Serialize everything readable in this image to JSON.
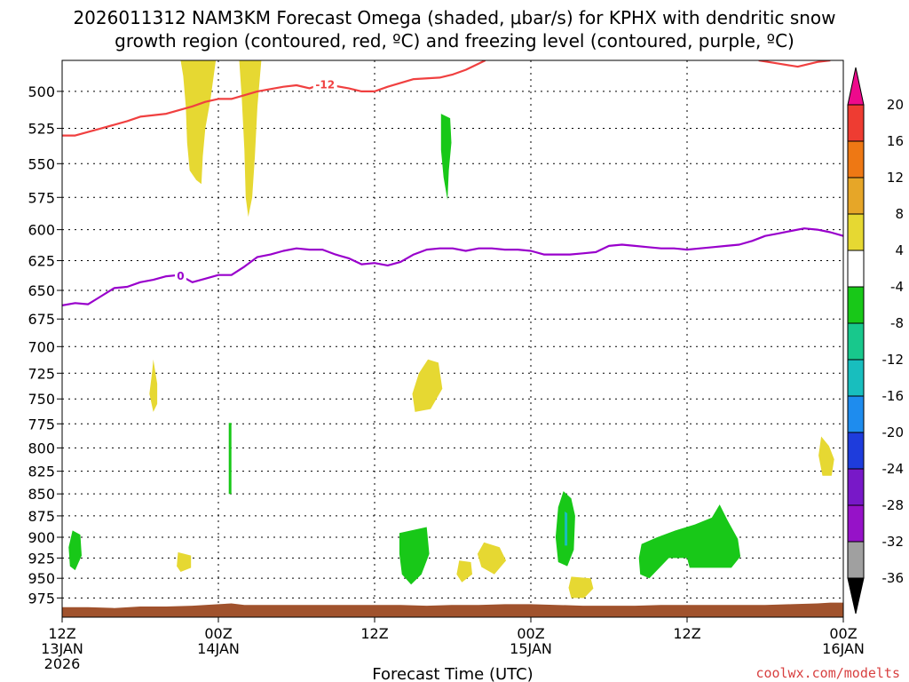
{
  "title_line1": "2026011312 NAM3KM Forecast Omega (shaded, μbar/s) for KPHX with dendritic snow",
  "title_line2": "growth region (contoured, red, ºC) and freezing level (contoured, purple, ºC)",
  "credit": "coolwx.com/modelts",
  "chart_data": {
    "type": "heatmap",
    "xlabel": "Forecast Time (UTC)",
    "x_unit": "forecast hour (0 = 2026-01-13 12Z)",
    "xlim": [
      0,
      60
    ],
    "ylim": [
      1000,
      480
    ],
    "x_ticks": [
      {
        "hour": 0,
        "line1": "12Z",
        "line2": "13JAN",
        "line3": "2026"
      },
      {
        "hour": 12,
        "line1": "00Z",
        "line2": "14JAN",
        "line3": ""
      },
      {
        "hour": 24,
        "line1": "12Z",
        "line2": "",
        "line3": ""
      },
      {
        "hour": 36,
        "line1": "00Z",
        "line2": "15JAN",
        "line3": ""
      },
      {
        "hour": 48,
        "line1": "12Z",
        "line2": "",
        "line3": ""
      },
      {
        "hour": 60,
        "line1": "00Z",
        "line2": "16JAN",
        "line3": ""
      }
    ],
    "y_ticks": [
      500,
      525,
      550,
      575,
      600,
      625,
      650,
      675,
      700,
      725,
      750,
      775,
      800,
      825,
      850,
      875,
      900,
      925,
      950,
      975
    ],
    "colorbar": {
      "labels": [
        "20",
        "16",
        "12",
        "8",
        "4",
        "-4",
        "-8",
        "-12",
        "-16",
        "-20",
        "-24",
        "-28",
        "-32",
        "-36"
      ],
      "colors": {
        "ge20": "#ee0a8c",
        "16_20": "#ee3c32",
        "12_16": "#ee7814",
        "8_12": "#e6a628",
        "4_8": "#e6d832",
        "neutral": "#ffffff",
        "m8_m4": "#18c818",
        "m12_m8": "#18c88c",
        "m16_m12": "#18bebe",
        "m20_m16": "#1e8cee",
        "m24_m20": "#1e3cdc",
        "m28_m24": "#7818c8",
        "m32_m28": "#9612c8",
        "m36_m32": "#a0a0a0",
        "le_m36": "#000000"
      }
    },
    "omega_regions": [
      {
        "sign": "positive",
        "range": "4 to 8",
        "pts": [
          [
            9.1,
            480
          ],
          [
            11.8,
            480
          ],
          [
            11.4,
            505
          ],
          [
            11.0,
            525
          ],
          [
            10.8,
            545
          ],
          [
            10.7,
            565
          ],
          [
            10.3,
            562
          ],
          [
            9.8,
            555
          ],
          [
            9.6,
            535
          ],
          [
            9.5,
            510
          ],
          [
            9.3,
            490
          ]
        ]
      },
      {
        "sign": "positive",
        "range": "4 to 8",
        "pts": [
          [
            13.6,
            480
          ],
          [
            15.3,
            480
          ],
          [
            15.0,
            510
          ],
          [
            14.8,
            545
          ],
          [
            14.6,
            575
          ],
          [
            14.3,
            590
          ],
          [
            14.1,
            575
          ],
          [
            14.0,
            540
          ],
          [
            13.8,
            505
          ]
        ]
      },
      {
        "sign": "negative",
        "range": "-8 to -4",
        "pts": [
          [
            29.1,
            515
          ],
          [
            29.8,
            518
          ],
          [
            29.9,
            535
          ],
          [
            29.7,
            555
          ],
          [
            29.6,
            577
          ],
          [
            29.3,
            560
          ],
          [
            29.1,
            540
          ]
        ]
      },
      {
        "sign": "positive",
        "range": "4 to 8",
        "pts": [
          [
            7.0,
            712
          ],
          [
            7.3,
            735
          ],
          [
            7.3,
            755
          ],
          [
            7.0,
            763
          ],
          [
            6.7,
            745
          ],
          [
            6.9,
            725
          ]
        ]
      },
      {
        "sign": "positive",
        "range": "4 to 8",
        "pts": [
          [
            28.1,
            712
          ],
          [
            28.9,
            715
          ],
          [
            29.2,
            740
          ],
          [
            28.3,
            760
          ],
          [
            27.1,
            763
          ],
          [
            26.9,
            745
          ],
          [
            27.4,
            725
          ]
        ]
      },
      {
        "sign": "negative",
        "range": "-8 to -4",
        "pts": [
          [
            12.8,
            774
          ],
          [
            13.0,
            774
          ],
          [
            13.0,
            850
          ],
          [
            12.8,
            850
          ]
        ]
      },
      {
        "sign": "positive",
        "range": "4 to 8",
        "pts": [
          [
            58.3,
            788
          ],
          [
            58.9,
            798
          ],
          [
            59.3,
            812
          ],
          [
            59.1,
            830
          ],
          [
            58.4,
            830
          ],
          [
            58.1,
            808
          ]
        ]
      },
      {
        "sign": "negative",
        "range": "-8 to -4",
        "pts": [
          [
            0.8,
            892
          ],
          [
            1.4,
            897
          ],
          [
            1.5,
            922
          ],
          [
            1.0,
            940
          ],
          [
            0.6,
            935
          ],
          [
            0.5,
            912
          ]
        ]
      },
      {
        "sign": "positive",
        "range": "4 to 8",
        "pts": [
          [
            8.9,
            918
          ],
          [
            9.9,
            922
          ],
          [
            9.9,
            937
          ],
          [
            9.1,
            942
          ],
          [
            8.8,
            935
          ]
        ]
      },
      {
        "sign": "negative",
        "range": "-8 to -4",
        "pts": [
          [
            25.9,
            895
          ],
          [
            28.0,
            888
          ],
          [
            28.2,
            920
          ],
          [
            27.6,
            945
          ],
          [
            26.8,
            958
          ],
          [
            26.1,
            945
          ],
          [
            25.9,
            920
          ]
        ]
      },
      {
        "sign": "positive",
        "range": "4 to 8",
        "pts": [
          [
            32.4,
            906
          ],
          [
            33.6,
            912
          ],
          [
            34.1,
            928
          ],
          [
            33.2,
            945
          ],
          [
            32.2,
            936
          ],
          [
            31.9,
            920
          ]
        ]
      },
      {
        "sign": "positive",
        "range": "4 to 8",
        "pts": [
          [
            30.5,
            928
          ],
          [
            31.4,
            930
          ],
          [
            31.5,
            945
          ],
          [
            30.7,
            955
          ],
          [
            30.3,
            945
          ]
        ]
      },
      {
        "sign": "negative",
        "range": "-8 to -4",
        "pts": [
          [
            38.5,
            847
          ],
          [
            39.1,
            855
          ],
          [
            39.4,
            875
          ],
          [
            39.3,
            915
          ],
          [
            38.8,
            935
          ],
          [
            38.1,
            930
          ],
          [
            37.9,
            900
          ],
          [
            38.1,
            865
          ]
        ]
      },
      {
        "sign": "negative",
        "range": "-16 to -12",
        "pts": [
          [
            38.6,
            870
          ],
          [
            38.8,
            872
          ],
          [
            38.8,
            910
          ],
          [
            38.6,
            910
          ]
        ]
      },
      {
        "sign": "positive",
        "range": "4 to 8",
        "pts": [
          [
            39.1,
            948
          ],
          [
            40.6,
            950
          ],
          [
            40.8,
            963
          ],
          [
            40.1,
            975
          ],
          [
            39.1,
            975
          ],
          [
            38.9,
            962
          ]
        ]
      },
      {
        "sign": "negative",
        "range": "-8 to -4",
        "pts": [
          [
            44.5,
            908
          ],
          [
            45.7,
            900
          ],
          [
            47.1,
            892
          ],
          [
            48.6,
            885
          ],
          [
            49.9,
            877
          ],
          [
            50.5,
            862
          ],
          [
            51.1,
            880
          ],
          [
            51.9,
            902
          ],
          [
            52.1,
            923
          ],
          [
            51.4,
            937
          ],
          [
            48.2,
            937
          ],
          [
            48.0,
            925
          ],
          [
            46.6,
            925
          ],
          [
            45.1,
            950
          ],
          [
            44.4,
            945
          ],
          [
            44.3,
            925
          ]
        ]
      }
    ],
    "contours": [
      {
        "label": "-12",
        "color": "#f04040",
        "label_at_hour": 20.2,
        "pts": [
          [
            0,
            530
          ],
          [
            1,
            530
          ],
          [
            3,
            525
          ],
          [
            5,
            520
          ],
          [
            6,
            517
          ],
          [
            8,
            515
          ],
          [
            10,
            510
          ],
          [
            11,
            507
          ],
          [
            12,
            505
          ],
          [
            13,
            505
          ],
          [
            15,
            500
          ],
          [
            17,
            497
          ],
          [
            18,
            496
          ],
          [
            19,
            498
          ],
          [
            20,
            495
          ],
          [
            22,
            498
          ],
          [
            23,
            500
          ],
          [
            24,
            500
          ],
          [
            25,
            497
          ],
          [
            27,
            492
          ],
          [
            29,
            491
          ],
          [
            30,
            489
          ],
          [
            31,
            486
          ],
          [
            32,
            482
          ],
          [
            32.5,
            480
          ]
        ]
      },
      {
        "label": "",
        "color": "#f04040",
        "pts": [
          [
            53.5,
            480
          ],
          [
            55,
            482
          ],
          [
            56.5,
            484
          ],
          [
            58,
            481
          ],
          [
            59,
            480
          ]
        ]
      },
      {
        "label": "0",
        "color": "#9900cc",
        "label_at_hour": 9.1,
        "pts": [
          [
            0,
            663
          ],
          [
            1,
            661
          ],
          [
            2,
            662
          ],
          [
            3,
            655
          ],
          [
            4,
            648
          ],
          [
            5,
            647
          ],
          [
            6,
            643
          ],
          [
            7,
            641
          ],
          [
            8,
            638
          ],
          [
            9,
            637
          ],
          [
            10,
            643
          ],
          [
            11,
            640
          ],
          [
            12,
            637
          ],
          [
            13,
            637
          ],
          [
            14,
            630
          ],
          [
            15,
            622
          ],
          [
            16,
            620
          ],
          [
            17,
            617
          ],
          [
            18,
            615
          ],
          [
            19,
            616
          ],
          [
            20,
            616
          ],
          [
            21,
            620
          ],
          [
            22,
            623
          ],
          [
            23,
            628
          ],
          [
            24,
            627
          ],
          [
            25,
            629
          ],
          [
            26,
            626
          ],
          [
            27,
            620
          ],
          [
            28,
            616
          ],
          [
            29,
            615
          ],
          [
            30,
            615
          ],
          [
            31,
            617
          ],
          [
            32,
            615
          ],
          [
            33,
            615
          ],
          [
            34,
            616
          ],
          [
            35,
            616
          ],
          [
            36,
            617
          ],
          [
            37,
            620
          ],
          [
            38,
            620
          ],
          [
            39,
            620
          ],
          [
            40,
            619
          ],
          [
            41,
            618
          ],
          [
            42,
            613
          ],
          [
            43,
            612
          ],
          [
            44,
            613
          ],
          [
            45,
            614
          ],
          [
            46,
            615
          ],
          [
            47,
            615
          ],
          [
            48,
            616
          ],
          [
            49,
            615
          ],
          [
            50,
            614
          ],
          [
            51,
            613
          ],
          [
            52,
            612
          ],
          [
            53,
            609
          ],
          [
            54,
            605
          ],
          [
            55,
            603
          ],
          [
            56,
            601
          ],
          [
            57,
            599
          ],
          [
            58,
            600
          ],
          [
            59,
            602
          ],
          [
            60,
            605
          ]
        ]
      }
    ],
    "terrain": {
      "label": "",
      "color": "#a0522d",
      "top_pressure": [
        [
          0,
          987
        ],
        [
          2,
          987
        ],
        [
          4,
          988
        ],
        [
          6,
          986
        ],
        [
          8,
          986
        ],
        [
          10,
          985
        ],
        [
          12,
          983
        ],
        [
          13,
          982
        ],
        [
          14,
          984
        ],
        [
          16,
          984
        ],
        [
          18,
          984
        ],
        [
          20,
          984
        ],
        [
          22,
          984
        ],
        [
          24,
          984
        ],
        [
          26,
          984
        ],
        [
          28,
          985
        ],
        [
          30,
          984
        ],
        [
          32,
          984
        ],
        [
          34,
          983
        ],
        [
          36,
          983
        ],
        [
          38,
          984
        ],
        [
          40,
          985
        ],
        [
          42,
          985
        ],
        [
          44,
          985
        ],
        [
          46,
          984
        ],
        [
          48,
          984
        ],
        [
          50,
          984
        ],
        [
          52,
          984
        ],
        [
          54,
          984
        ],
        [
          56,
          983
        ],
        [
          58,
          982
        ],
        [
          59,
          981
        ],
        [
          60,
          981
        ]
      ]
    }
  }
}
